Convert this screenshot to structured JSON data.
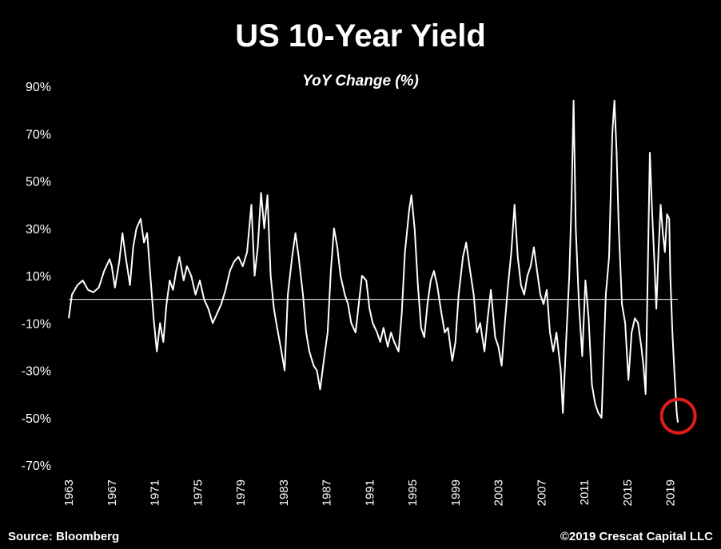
{
  "chart_data": {
    "type": "line",
    "title": "US 10-Year Yield",
    "subtitle": "YoY Change (%)",
    "xlabel": "",
    "ylabel": "",
    "xlim": [
      1963,
      2020
    ],
    "ylim": [
      -70,
      90
    ],
    "y_ticks": [
      "90%",
      "70%",
      "50%",
      "30%",
      "10%",
      "-10%",
      "-30%",
      "-50%",
      "-70%"
    ],
    "y_tick_values": [
      90,
      70,
      50,
      30,
      10,
      -10,
      -30,
      -50,
      -70
    ],
    "x_ticks": [
      "1963",
      "1967",
      "1971",
      "1975",
      "1979",
      "1983",
      "1987",
      "1991",
      "1995",
      "1999",
      "2003",
      "2007",
      "2011",
      "2015",
      "2019"
    ],
    "x_tick_values": [
      1963,
      1967,
      1971,
      1975,
      1979,
      1983,
      1987,
      1991,
      1995,
      1999,
      2003,
      2007,
      2011,
      2015,
      2019
    ],
    "grid": false,
    "zero_line": true,
    "line_color": "#ffffff",
    "background": "#000000",
    "annotation": {
      "type": "circle",
      "x": 2019.6,
      "y": -52,
      "color": "#e01b1b"
    },
    "series": [
      {
        "values": [
          [
            1963.0,
            -8
          ],
          [
            1963.3,
            2
          ],
          [
            1963.8,
            6
          ],
          [
            1964.3,
            8
          ],
          [
            1964.8,
            4
          ],
          [
            1965.3,
            3
          ],
          [
            1965.8,
            5
          ],
          [
            1966.3,
            12
          ],
          [
            1966.8,
            17
          ],
          [
            1967.0,
            14
          ],
          [
            1967.3,
            5
          ],
          [
            1967.7,
            16
          ],
          [
            1968.0,
            28
          ],
          [
            1968.3,
            18
          ],
          [
            1968.7,
            6
          ],
          [
            1969.0,
            22
          ],
          [
            1969.3,
            30
          ],
          [
            1969.7,
            34
          ],
          [
            1970.0,
            24
          ],
          [
            1970.3,
            28
          ],
          [
            1970.6,
            10
          ],
          [
            1970.9,
            -8
          ],
          [
            1971.2,
            -22
          ],
          [
            1971.5,
            -10
          ],
          [
            1971.8,
            -18
          ],
          [
            1972.1,
            -2
          ],
          [
            1972.4,
            8
          ],
          [
            1972.7,
            4
          ],
          [
            1973.0,
            12
          ],
          [
            1973.3,
            18
          ],
          [
            1973.7,
            8
          ],
          [
            1974.0,
            14
          ],
          [
            1974.4,
            10
          ],
          [
            1974.8,
            2
          ],
          [
            1975.2,
            8
          ],
          [
            1975.6,
            0
          ],
          [
            1976.0,
            -4
          ],
          [
            1976.4,
            -10
          ],
          [
            1976.8,
            -6
          ],
          [
            1977.2,
            -2
          ],
          [
            1977.6,
            4
          ],
          [
            1978.0,
            12
          ],
          [
            1978.4,
            16
          ],
          [
            1978.8,
            18
          ],
          [
            1979.2,
            14
          ],
          [
            1979.6,
            20
          ],
          [
            1980.0,
            40
          ],
          [
            1980.3,
            10
          ],
          [
            1980.6,
            22
          ],
          [
            1980.9,
            45
          ],
          [
            1981.2,
            30
          ],
          [
            1981.5,
            44
          ],
          [
            1981.8,
            10
          ],
          [
            1982.1,
            -4
          ],
          [
            1982.4,
            -12
          ],
          [
            1982.8,
            -22
          ],
          [
            1983.1,
            -30
          ],
          [
            1983.4,
            2
          ],
          [
            1983.8,
            18
          ],
          [
            1984.1,
            28
          ],
          [
            1984.4,
            18
          ],
          [
            1984.8,
            2
          ],
          [
            1985.1,
            -14
          ],
          [
            1985.4,
            -22
          ],
          [
            1985.8,
            -28
          ],
          [
            1986.1,
            -30
          ],
          [
            1986.4,
            -38
          ],
          [
            1986.8,
            -24
          ],
          [
            1987.1,
            -14
          ],
          [
            1987.4,
            12
          ],
          [
            1987.7,
            30
          ],
          [
            1988.0,
            22
          ],
          [
            1988.3,
            10
          ],
          [
            1988.7,
            2
          ],
          [
            1989.0,
            -2
          ],
          [
            1989.3,
            -10
          ],
          [
            1989.7,
            -14
          ],
          [
            1990.0,
            -2
          ],
          [
            1990.3,
            10
          ],
          [
            1990.7,
            8
          ],
          [
            1991.0,
            -4
          ],
          [
            1991.3,
            -10
          ],
          [
            1991.7,
            -14
          ],
          [
            1992.0,
            -18
          ],
          [
            1992.3,
            -12
          ],
          [
            1992.7,
            -20
          ],
          [
            1993.0,
            -14
          ],
          [
            1993.3,
            -18
          ],
          [
            1993.7,
            -22
          ],
          [
            1994.0,
            -6
          ],
          [
            1994.3,
            20
          ],
          [
            1994.7,
            38
          ],
          [
            1994.9,
            44
          ],
          [
            1995.2,
            30
          ],
          [
            1995.5,
            6
          ],
          [
            1995.8,
            -12
          ],
          [
            1996.1,
            -16
          ],
          [
            1996.4,
            -2
          ],
          [
            1996.7,
            8
          ],
          [
            1997.0,
            12
          ],
          [
            1997.3,
            6
          ],
          [
            1997.7,
            -6
          ],
          [
            1998.0,
            -14
          ],
          [
            1998.3,
            -12
          ],
          [
            1998.7,
            -26
          ],
          [
            1999.0,
            -18
          ],
          [
            1999.3,
            2
          ],
          [
            1999.7,
            18
          ],
          [
            2000.0,
            24
          ],
          [
            2000.3,
            14
          ],
          [
            2000.7,
            2
          ],
          [
            2001.0,
            -14
          ],
          [
            2001.3,
            -10
          ],
          [
            2001.7,
            -22
          ],
          [
            2002.0,
            -8
          ],
          [
            2002.3,
            4
          ],
          [
            2002.7,
            -16
          ],
          [
            2003.0,
            -20
          ],
          [
            2003.3,
            -28
          ],
          [
            2003.6,
            -10
          ],
          [
            2003.9,
            6
          ],
          [
            2004.2,
            20
          ],
          [
            2004.5,
            40
          ],
          [
            2004.8,
            18
          ],
          [
            2005.1,
            6
          ],
          [
            2005.4,
            2
          ],
          [
            2005.7,
            10
          ],
          [
            2006.0,
            14
          ],
          [
            2006.3,
            22
          ],
          [
            2006.6,
            12
          ],
          [
            2006.9,
            2
          ],
          [
            2007.2,
            -2
          ],
          [
            2007.5,
            4
          ],
          [
            2007.8,
            -14
          ],
          [
            2008.1,
            -22
          ],
          [
            2008.4,
            -14
          ],
          [
            2008.8,
            -30
          ],
          [
            2009.0,
            -48
          ],
          [
            2009.3,
            -18
          ],
          [
            2009.6,
            10
          ],
          [
            2009.8,
            40
          ],
          [
            2010.0,
            84
          ],
          [
            2010.2,
            30
          ],
          [
            2010.5,
            -2
          ],
          [
            2010.8,
            -24
          ],
          [
            2011.1,
            8
          ],
          [
            2011.4,
            -8
          ],
          [
            2011.7,
            -36
          ],
          [
            2012.0,
            -44
          ],
          [
            2012.3,
            -48
          ],
          [
            2012.6,
            -50
          ],
          [
            2012.8,
            -24
          ],
          [
            2013.0,
            2
          ],
          [
            2013.3,
            18
          ],
          [
            2013.6,
            70
          ],
          [
            2013.8,
            84
          ],
          [
            2014.0,
            62
          ],
          [
            2014.2,
            30
          ],
          [
            2014.5,
            -2
          ],
          [
            2014.8,
            -10
          ],
          [
            2015.1,
            -34
          ],
          [
            2015.4,
            -14
          ],
          [
            2015.7,
            -8
          ],
          [
            2016.0,
            -10
          ],
          [
            2016.3,
            -20
          ],
          [
            2016.5,
            -28
          ],
          [
            2016.7,
            -40
          ],
          [
            2016.9,
            10
          ],
          [
            2017.1,
            62
          ],
          [
            2017.3,
            38
          ],
          [
            2017.5,
            18
          ],
          [
            2017.7,
            -4
          ],
          [
            2017.9,
            20
          ],
          [
            2018.1,
            40
          ],
          [
            2018.3,
            28
          ],
          [
            2018.5,
            20
          ],
          [
            2018.7,
            36
          ],
          [
            2018.9,
            34
          ],
          [
            2019.0,
            10
          ],
          [
            2019.2,
            -14
          ],
          [
            2019.4,
            -32
          ],
          [
            2019.6,
            -48
          ],
          [
            2019.7,
            -52
          ]
        ]
      }
    ],
    "source": "Source: Bloomberg",
    "copyright": "©2019 Crescat Capital LLC"
  }
}
